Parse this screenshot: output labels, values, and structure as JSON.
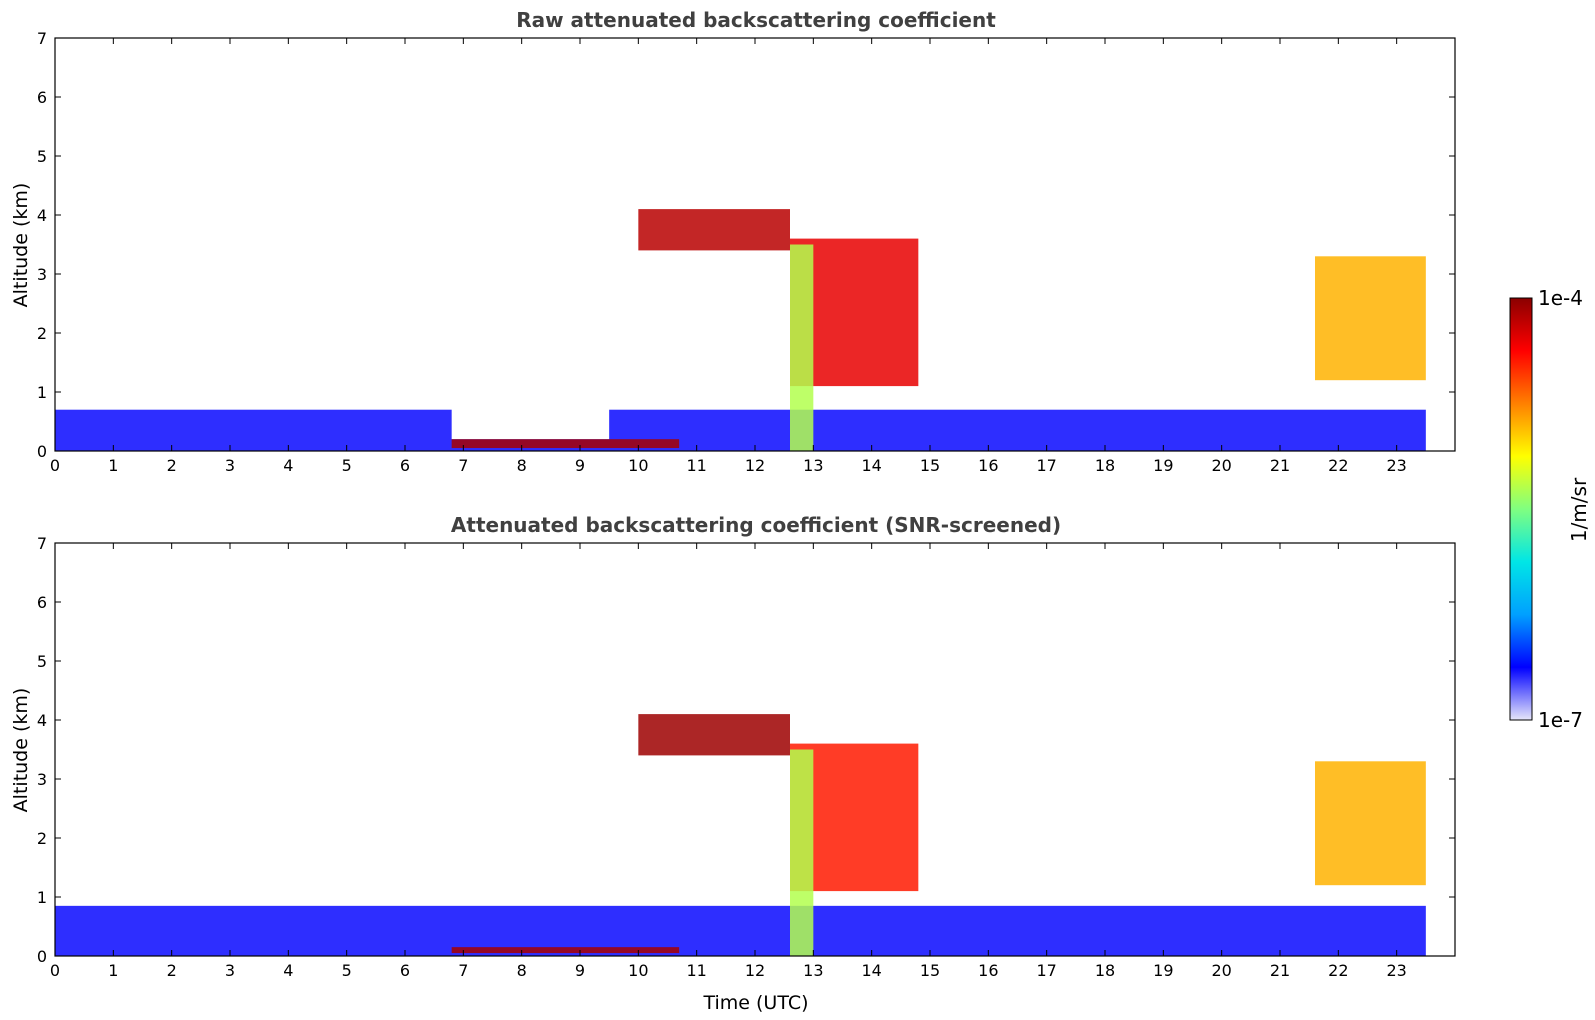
{
  "chart_data": [
    {
      "type": "heatmap",
      "title": "Raw attenuated backscattering coefficient",
      "xlabel": "",
      "ylabel": "Altitude (km)",
      "xlim": [
        0,
        24
      ],
      "ylim": [
        0,
        7
      ],
      "x_ticks": [
        "0",
        "1",
        "2",
        "3",
        "4",
        "5",
        "6",
        "7",
        "8",
        "9",
        "10",
        "11",
        "12",
        "13",
        "14",
        "15",
        "16",
        "17",
        "18",
        "19",
        "20",
        "21",
        "22",
        "23"
      ],
      "y_ticks": [
        "0",
        "1",
        "2",
        "3",
        "4",
        "5",
        "6",
        "7"
      ],
      "features": [
        {
          "name": "boundary layer",
          "time": [
            0,
            23.5
          ],
          "alt": [
            0,
            0.7
          ],
          "level": 0.12
        },
        {
          "name": "data gap",
          "time": [
            6.8,
            9.5
          ],
          "alt": [
            0.2,
            6.2
          ]
        },
        {
          "name": "low layer",
          "time": [
            6.8,
            10.7
          ],
          "alt": [
            0.05,
            0.2
          ],
          "level": 0.97
        },
        {
          "name": "mid cloud",
          "time": [
            10,
            12.6
          ],
          "alt": [
            3.4,
            4.1
          ],
          "level": 0.95
        },
        {
          "name": "descending cloud",
          "time": [
            12.6,
            14.8
          ],
          "alt": [
            1.1,
            3.6
          ],
          "level": 0.9
        },
        {
          "name": "fall streak",
          "time": [
            12.6,
            13.0
          ],
          "alt": [
            0,
            3.5
          ],
          "level": 0.55
        },
        {
          "name": "evening cloud",
          "time": [
            21.6,
            23.5
          ],
          "alt": [
            1.2,
            3.3
          ],
          "level": 0.7
        }
      ]
    },
    {
      "type": "heatmap",
      "title": "Attenuated backscattering coefficient (SNR-screened)",
      "xlabel": "Time (UTC)",
      "ylabel": "Altitude (km)",
      "xlim": [
        0,
        24
      ],
      "ylim": [
        0,
        7
      ],
      "x_ticks": [
        "0",
        "1",
        "2",
        "3",
        "4",
        "5",
        "6",
        "7",
        "8",
        "9",
        "10",
        "11",
        "12",
        "13",
        "14",
        "15",
        "16",
        "17",
        "18",
        "19",
        "20",
        "21",
        "22",
        "23"
      ],
      "y_ticks": [
        "0",
        "1",
        "2",
        "3",
        "4",
        "5",
        "6",
        "7"
      ],
      "features": [
        {
          "name": "boundary layer",
          "time": [
            0,
            23.5
          ],
          "alt": [
            0,
            0.85
          ],
          "level": 0.12
        },
        {
          "name": "low layer",
          "time": [
            6.8,
            10.7
          ],
          "alt": [
            0.05,
            0.15
          ],
          "level": 0.97
        },
        {
          "name": "mid cloud",
          "time": [
            10,
            12.6
          ],
          "alt": [
            3.4,
            4.1
          ],
          "level": 0.98
        },
        {
          "name": "descending cloud",
          "time": [
            12.6,
            14.8
          ],
          "alt": [
            1.1,
            3.6
          ],
          "level": 0.85
        },
        {
          "name": "fall streak",
          "time": [
            12.6,
            13.0
          ],
          "alt": [
            0,
            3.5
          ],
          "level": 0.55
        },
        {
          "name": "evening cloud",
          "time": [
            21.6,
            23.5
          ],
          "alt": [
            1.2,
            3.3
          ],
          "level": 0.7
        }
      ]
    }
  ],
  "colorbar": {
    "label": "1/m/sr",
    "max_label": "1e-4",
    "min_label": "1e-7",
    "colors": [
      "#e6e6fa",
      "#0000ff",
      "#00a0ff",
      "#00e6e6",
      "#80ff80",
      "#ffff00",
      "#ff8000",
      "#ff0000",
      "#8b0000"
    ]
  }
}
